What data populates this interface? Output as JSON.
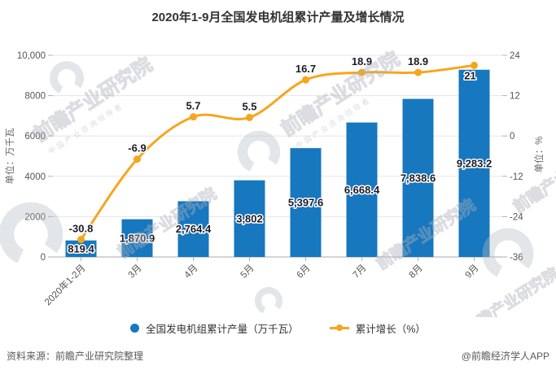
{
  "title": "2020年1-9月全国发电机组累计产量及增长情况",
  "chart_data": {
    "type": "bar+line",
    "title": "2020年1-9月全国发电机组累计产量及增长情况",
    "categories": [
      "2020年1-2月",
      "3月",
      "4月",
      "5月",
      "6月",
      "7月",
      "8月",
      "9月"
    ],
    "series": [
      {
        "name": "全国发电机组累计产量（万千瓦）",
        "type": "bar",
        "yaxis": "left",
        "color": "#1777bf",
        "values": [
          819.4,
          1870.9,
          2764.4,
          3802,
          5397.6,
          6668.4,
          7838.6,
          9283.2
        ],
        "value_labels": [
          "819.4",
          "1,870.9",
          "2,764.4",
          "3,802",
          "5,397.6",
          "6,668.4",
          "7,838.6",
          "9,283.2"
        ]
      },
      {
        "name": "累计增长（%）",
        "type": "line",
        "yaxis": "right",
        "color": "#f7a51e",
        "values": [
          -30.8,
          -6.9,
          5.7,
          5.5,
          16.7,
          18.9,
          18.9,
          21
        ],
        "value_labels": [
          "-30.8",
          "-6.9",
          "5.7",
          "5.5",
          "16.7",
          "18.9",
          "18.9",
          "21"
        ]
      }
    ],
    "left_axis": {
      "title": "单位：万千瓦",
      "range": [
        0,
        10000
      ],
      "ticks": [
        0,
        2000,
        4000,
        6000,
        8000,
        10000
      ],
      "tick_labels": [
        "0",
        "2000",
        "4000",
        "6000",
        "8000",
        "10,000"
      ]
    },
    "right_axis": {
      "title": "单位：%",
      "range": [
        -36,
        24
      ],
      "ticks": [
        -36,
        -24,
        -12,
        0,
        12,
        24
      ],
      "tick_labels": [
        "-36",
        "-24",
        "-12",
        "0",
        "12",
        "24"
      ]
    },
    "grid": true,
    "legend_position": "bottom"
  },
  "legend": [
    {
      "label": "全国发电机组累计产量（万千瓦）"
    },
    {
      "label": "累计增长（%）"
    }
  ],
  "footer": {
    "source": "资料来源：前瞻产业研究院整理",
    "credit": "@前瞻经济学人APP"
  },
  "watermark": {
    "brand": "前瞻产业研究院",
    "tagline": "中国产业咨询领导者"
  }
}
